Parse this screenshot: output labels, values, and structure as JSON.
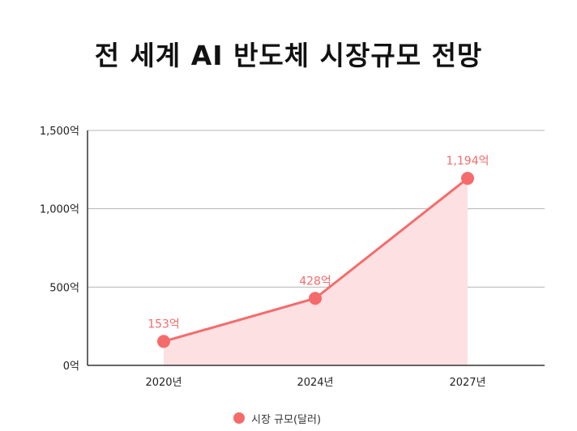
{
  "chart_data": {
    "type": "area",
    "title": "전 세계 AI 반도체 시장규모 전망",
    "categories": [
      "2020년",
      "2024년",
      "2027년"
    ],
    "series": [
      {
        "name": "시장 규모(달러)",
        "values": [
          153,
          428,
          1194
        ],
        "labels": [
          "153억",
          "428억",
          "1,194억"
        ]
      }
    ],
    "y_ticks": [
      0,
      500,
      1000,
      1500
    ],
    "y_tick_labels": [
      "0억",
      "500억",
      "1,000억",
      "1,500억"
    ],
    "ylim": [
      0,
      1500
    ],
    "grid": true,
    "legend": "bottom-center",
    "colors": {
      "line": "#f56b6b",
      "fill": "#fde0e2",
      "label": "#f56b6b",
      "grid": "#b5b5b5",
      "axis": "#333333"
    }
  }
}
